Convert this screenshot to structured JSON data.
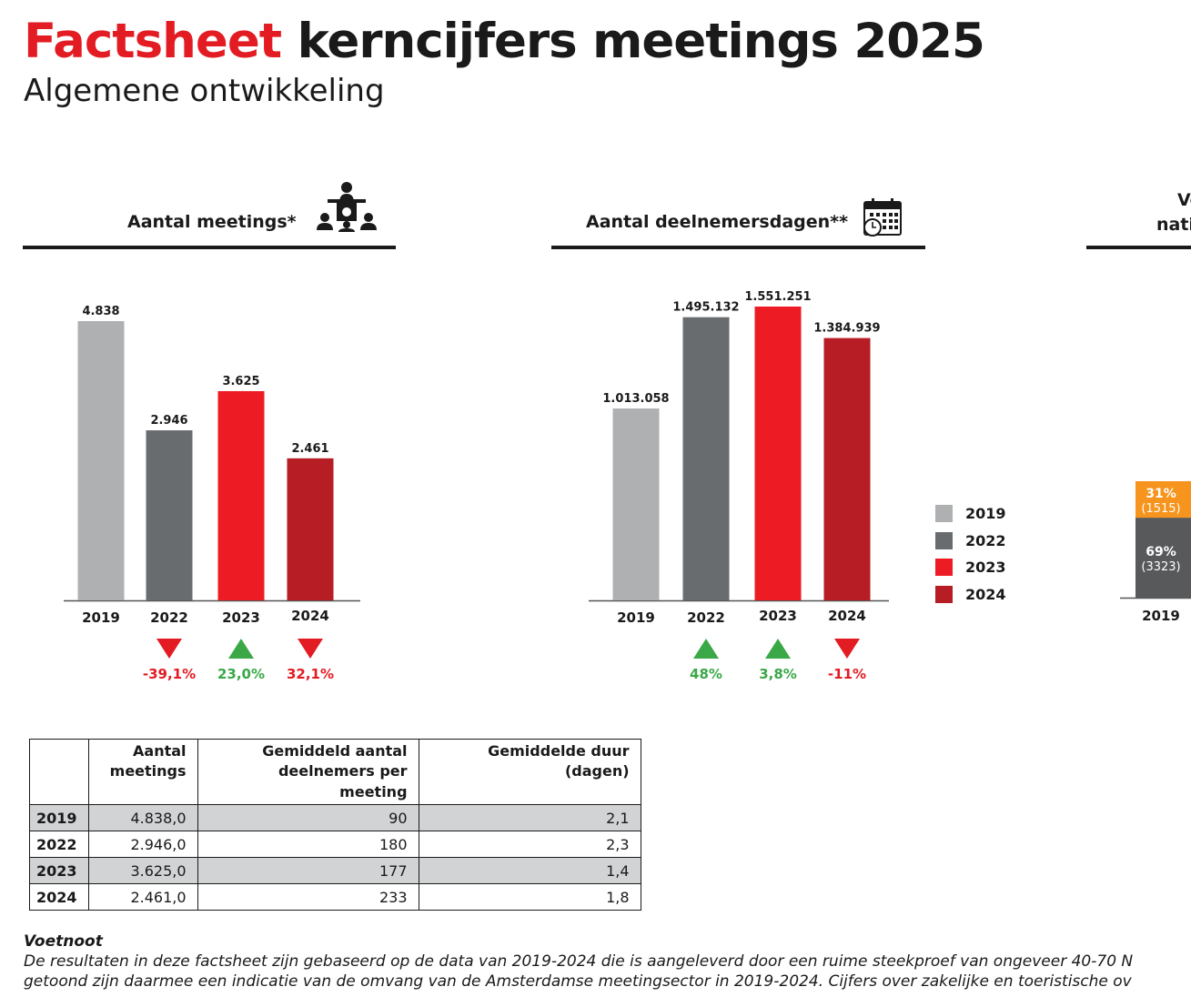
{
  "header": {
    "title_highlight": "Factsheet",
    "title_rest": "kerncijfers meetings 2025",
    "subtitle": "Algemene ontwikkeling"
  },
  "sections": {
    "meetings_title": "Aantal meetings*",
    "deelnemers_title": "Aantal deelnemersdagen**",
    "third_title_line1": "Ve",
    "third_title_line2": "nati"
  },
  "icons": {
    "meetings": "meeting-speaker-icon",
    "deelnemers": "calendar-clock-icon"
  },
  "colors": {
    "2019": "#aeb0b2",
    "2022": "#696c6f",
    "2023": "#ed1c24",
    "2024": "#b61d24",
    "up": "#3aa847",
    "down": "#e31b23",
    "orange": "#f7941d",
    "dark": "#58595b"
  },
  "legend": [
    {
      "label": "2019",
      "color": "#aeb0b2"
    },
    {
      "label": "2022",
      "color": "#696c6f"
    },
    {
      "label": "2023",
      "color": "#ed1c24"
    },
    {
      "label": "2024",
      "color": "#b61d24"
    }
  ],
  "chart_data": [
    {
      "type": "bar",
      "title": "Aantal meetings*",
      "categories": [
        "2019",
        "2022",
        "2023",
        "2024"
      ],
      "values": [
        4838,
        2946,
        3625,
        2461
      ],
      "value_labels": [
        "4.838",
        "2.946",
        "3.625",
        "2.461"
      ],
      "changes": [
        null,
        {
          "dir": "down",
          "label": "-39,1%"
        },
        {
          "dir": "up",
          "label": "23,0%"
        },
        {
          "dir": "down",
          "label": "32,1%"
        }
      ]
    },
    {
      "type": "bar",
      "title": "Aantal deelnemersdagen**",
      "categories": [
        "2019",
        "2022",
        "2023",
        "2024"
      ],
      "values": [
        1013058,
        1495132,
        1551251,
        1384939
      ],
      "value_labels": [
        "1.013.058",
        "1.495.132",
        "1.551.251",
        "1.384.939"
      ],
      "changes": [
        null,
        {
          "dir": "up",
          "label": "48%"
        },
        {
          "dir": "up",
          "label": "3,8%"
        },
        {
          "dir": "down",
          "label": "-11%"
        }
      ]
    },
    {
      "type": "bar",
      "stacked": true,
      "categories": [
        "2019"
      ],
      "segments": [
        {
          "label": "31%",
          "sublabel": "(1515)",
          "value": 1515,
          "color": "#f7941d"
        },
        {
          "label": "69%",
          "sublabel": "(3323)",
          "value": 3323,
          "color": "#58595b"
        }
      ]
    }
  ],
  "table": {
    "headers": [
      "",
      [
        "Aantal",
        "meetings"
      ],
      [
        "Gemiddeld aantal",
        "deelnemers per meeting"
      ],
      [
        "Gemiddelde duur",
        "(dagen)"
      ]
    ],
    "rows": [
      [
        "2019",
        "4.838,0",
        "90",
        "2,1"
      ],
      [
        "2022",
        "2.946,0",
        "180",
        "2,3"
      ],
      [
        "2023",
        "3.625,0",
        "177",
        "1,4"
      ],
      [
        "2024",
        "2.461,0",
        "233",
        "1,8"
      ]
    ]
  },
  "footnote": {
    "title": "Voetnoot",
    "line1": "De resultaten in deze factsheet zijn gebaseerd op de data van 2019-2024 die is aangeleverd door een ruime steekproef van ongeveer 40-70 N",
    "line2": "getoond zijn daarmee een indicatie van de omvang van de Amsterdamse meetingsector in 2019-2024. Cijfers over zakelijke en toeristische ov"
  }
}
